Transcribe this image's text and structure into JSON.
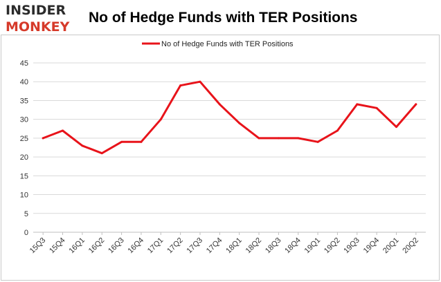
{
  "brand": {
    "line1": "INSIDER",
    "line2": "MONKEY"
  },
  "chart_data": {
    "type": "line",
    "title": "No of Hedge Funds with TER Positions",
    "xlabel": "",
    "ylabel": "",
    "categories": [
      "15Q3",
      "15Q4",
      "16Q1",
      "16Q2",
      "16Q3",
      "16Q4",
      "17Q1",
      "17Q2",
      "17Q3",
      "17Q4",
      "18Q1",
      "18Q2",
      "18Q3",
      "18Q4",
      "19Q1",
      "19Q2",
      "19Q3",
      "19Q4",
      "20Q1",
      "20Q2"
    ],
    "series": [
      {
        "name": "No of Hedge Funds with TER Positions",
        "color": "#e8131a",
        "values": [
          25,
          27,
          23,
          21,
          24,
          24,
          30,
          39,
          40,
          34,
          29,
          25,
          25,
          25,
          24,
          27,
          34,
          33,
          28,
          34
        ]
      }
    ],
    "ylim": [
      0,
      45
    ],
    "yticks": [
      0,
      5,
      10,
      15,
      20,
      25,
      30,
      35,
      40,
      45
    ],
    "grid": "horizontal",
    "legend_position": "top-center"
  }
}
